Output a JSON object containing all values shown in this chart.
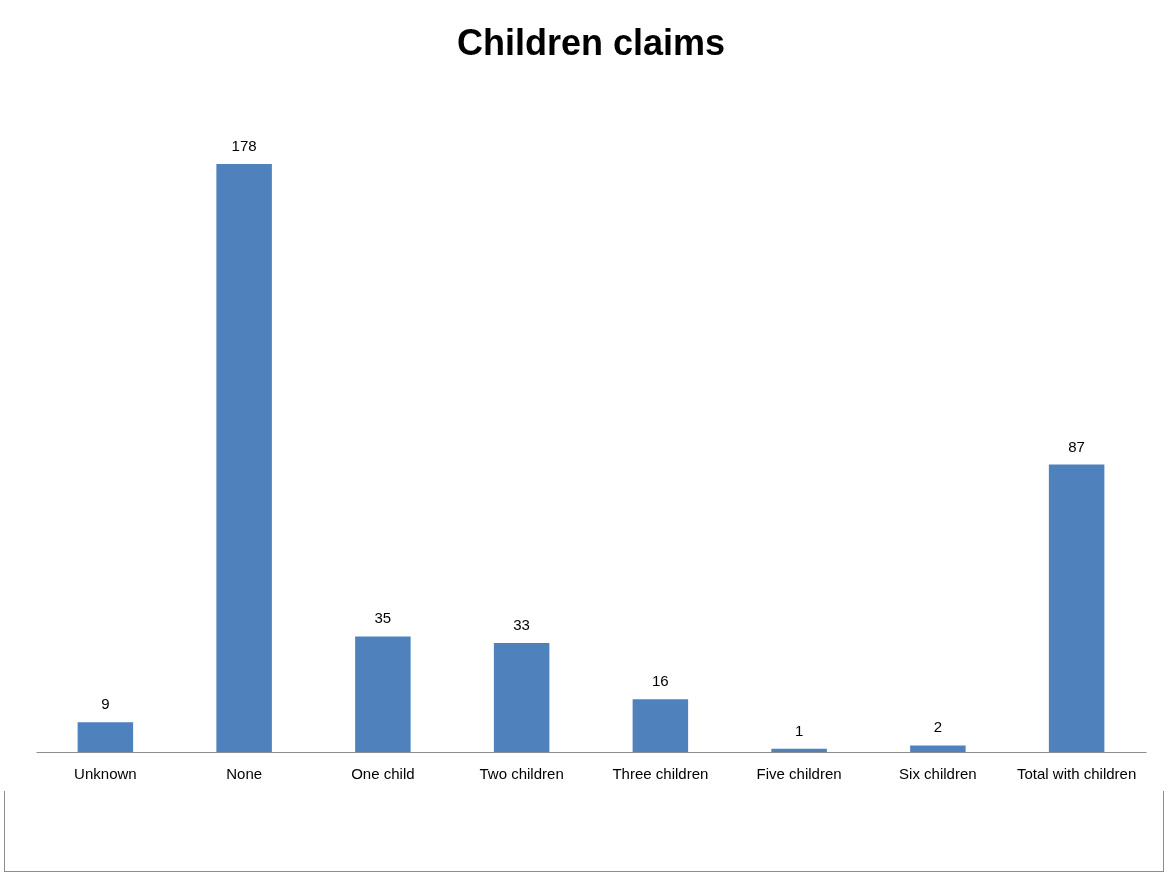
{
  "chart_data": {
    "type": "bar",
    "title": "Children claims",
    "categories": [
      "Unknown",
      "None",
      "One child",
      "Two children",
      "Three children",
      "Five children",
      "Six children",
      "Total with children"
    ],
    "values": [
      9,
      178,
      35,
      33,
      16,
      1,
      2,
      87
    ],
    "color": "#4f81bd",
    "data_labels": true
  }
}
